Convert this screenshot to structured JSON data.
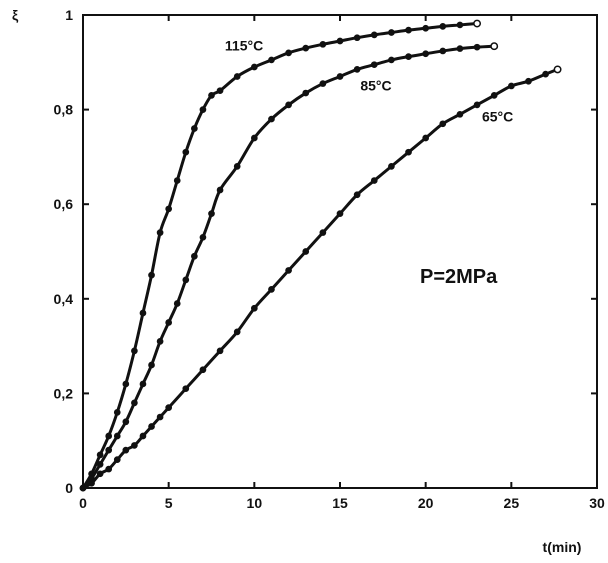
{
  "chart_data": {
    "type": "line",
    "title": "",
    "xlabel": "t(min)",
    "ylabel": "ξ",
    "xlim": [
      0,
      30
    ],
    "ylim": [
      0,
      1
    ],
    "x_ticks": [
      0,
      5,
      10,
      15,
      20,
      25,
      30
    ],
    "y_ticks": [
      0,
      0.2,
      0.4,
      0.6,
      0.8,
      1
    ],
    "x_tick_labels": [
      "0",
      "5",
      "10",
      "15",
      "20",
      "25",
      "30"
    ],
    "y_tick_labels": [
      "0",
      "0,2",
      "0,4",
      "0,6",
      "0,8",
      "1"
    ],
    "grid": false,
    "annotation": "P=2MPa",
    "line_color": "#111111",
    "series": [
      {
        "name": "115°C",
        "label_at": [
          9.4,
          0.925
        ],
        "x": [
          0,
          0.5,
          1,
          1.5,
          2,
          2.5,
          3,
          3.5,
          4,
          4.5,
          5,
          5.5,
          6,
          6.5,
          7,
          7.5,
          8,
          9,
          10,
          11,
          12,
          13,
          14,
          15,
          16,
          17,
          18,
          19,
          20,
          21,
          22,
          23
        ],
        "y": [
          0,
          0.03,
          0.07,
          0.11,
          0.16,
          0.22,
          0.29,
          0.37,
          0.45,
          0.54,
          0.59,
          0.65,
          0.71,
          0.76,
          0.8,
          0.83,
          0.84,
          0.87,
          0.89,
          0.905,
          0.92,
          0.93,
          0.938,
          0.945,
          0.952,
          0.958,
          0.963,
          0.968,
          0.972,
          0.976,
          0.979,
          0.982
        ]
      },
      {
        "name": "85°C",
        "label_at": [
          17.1,
          0.84
        ],
        "x": [
          0,
          0.5,
          1,
          1.5,
          2,
          2.5,
          3,
          3.5,
          4,
          4.5,
          5,
          5.5,
          6,
          6.5,
          7,
          7.5,
          8,
          9,
          10,
          11,
          12,
          13,
          14,
          15,
          16,
          17,
          18,
          19,
          20,
          21,
          22,
          23,
          24
        ],
        "y": [
          0,
          0.02,
          0.05,
          0.08,
          0.11,
          0.14,
          0.18,
          0.22,
          0.26,
          0.31,
          0.35,
          0.39,
          0.44,
          0.49,
          0.53,
          0.58,
          0.63,
          0.68,
          0.74,
          0.78,
          0.81,
          0.835,
          0.855,
          0.87,
          0.885,
          0.895,
          0.905,
          0.912,
          0.918,
          0.924,
          0.929,
          0.932,
          0.934
        ]
      },
      {
        "name": "65°C",
        "label_at": [
          24.2,
          0.775
        ],
        "x": [
          0,
          0.5,
          1,
          1.5,
          2,
          2.5,
          3,
          3.5,
          4,
          4.5,
          5,
          6,
          7,
          8,
          9,
          10,
          11,
          12,
          13,
          14,
          15,
          16,
          17,
          18,
          19,
          20,
          21,
          22,
          23,
          24,
          25,
          26,
          27,
          27.7
        ],
        "y": [
          0,
          0.01,
          0.03,
          0.04,
          0.06,
          0.08,
          0.09,
          0.11,
          0.13,
          0.15,
          0.17,
          0.21,
          0.25,
          0.29,
          0.33,
          0.38,
          0.42,
          0.46,
          0.5,
          0.54,
          0.58,
          0.62,
          0.65,
          0.68,
          0.71,
          0.74,
          0.77,
          0.79,
          0.81,
          0.83,
          0.85,
          0.86,
          0.875,
          0.885
        ]
      }
    ]
  }
}
